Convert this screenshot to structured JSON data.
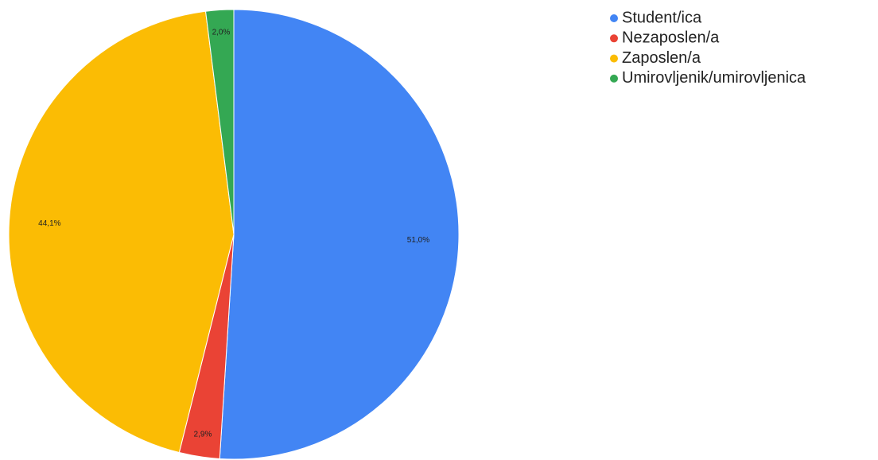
{
  "chart_data": {
    "type": "pie",
    "categories": [
      "Student/ica",
      "Nezaposlen/a",
      "Zaposlen/a",
      "Umirovljenik/umirovljenica"
    ],
    "values": [
      51.0,
      2.9,
      44.1,
      2.0
    ],
    "value_labels": [
      "51,0%",
      "2,9%",
      "44,1%",
      "2,0%"
    ],
    "colors": [
      "#4285f4",
      "#ea4335",
      "#fbbc04",
      "#34a853"
    ],
    "legend": "right"
  }
}
